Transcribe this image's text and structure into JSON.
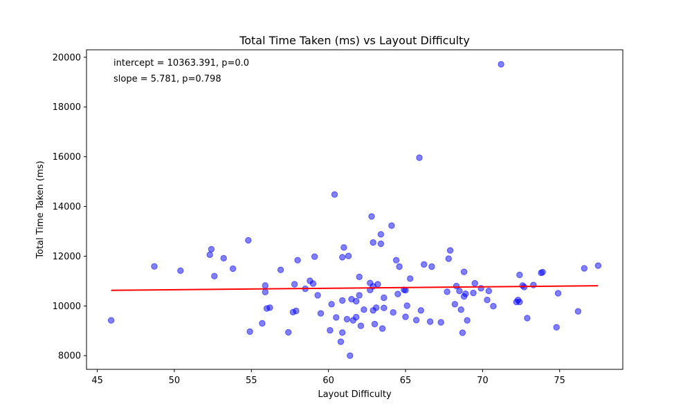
{
  "chart_data": {
    "type": "scatter",
    "title": "Total Time Taken (ms) vs Layout Difficulty",
    "xlabel": "Layout Difficulty",
    "ylabel": "Total Time Taken (ms)",
    "xlim": [
      44.3,
      79.1
    ],
    "ylim": [
      7450,
      20300
    ],
    "xticks": [
      45,
      50,
      55,
      60,
      65,
      70,
      75
    ],
    "yticks": [
      8000,
      10000,
      12000,
      14000,
      16000,
      18000,
      20000
    ],
    "grid": false,
    "legend": "none",
    "annotations": [
      "intercept = 10363.391, p=0.0",
      "slope = 5.781, p=0.798"
    ],
    "colors": {
      "points": "#0000ff",
      "fit_line": "#ff0000"
    },
    "fit_line": {
      "intercept": 10363.391,
      "slope": 5.781,
      "x_range": [
        45.9,
        77.5
      ]
    },
    "points": [
      [
        45.9,
        9420
      ],
      [
        48.7,
        11590
      ],
      [
        50.4,
        11420
      ],
      [
        52.3,
        12060
      ],
      [
        52.4,
        12280
      ],
      [
        52.6,
        11200
      ],
      [
        53.2,
        11920
      ],
      [
        53.8,
        11500
      ],
      [
        54.8,
        12640
      ],
      [
        54.9,
        8970
      ],
      [
        55.7,
        9300
      ],
      [
        55.9,
        10820
      ],
      [
        55.9,
        10560
      ],
      [
        56.0,
        9900
      ],
      [
        56.2,
        9930
      ],
      [
        56.9,
        11450
      ],
      [
        57.4,
        8940
      ],
      [
        57.7,
        9750
      ],
      [
        57.8,
        10870
      ],
      [
        57.9,
        9800
      ],
      [
        58.0,
        11840
      ],
      [
        58.5,
        10690
      ],
      [
        58.8,
        11010
      ],
      [
        59.0,
        10900
      ],
      [
        59.1,
        11980
      ],
      [
        59.3,
        10430
      ],
      [
        59.5,
        9700
      ],
      [
        60.1,
        9020
      ],
      [
        60.2,
        10070
      ],
      [
        60.4,
        14480
      ],
      [
        60.5,
        9540
      ],
      [
        60.8,
        8560
      ],
      [
        60.9,
        10220
      ],
      [
        60.9,
        8930
      ],
      [
        60.9,
        11960
      ],
      [
        61.0,
        12350
      ],
      [
        61.2,
        9470
      ],
      [
        61.3,
        12010
      ],
      [
        61.4,
        8000
      ],
      [
        61.5,
        10270
      ],
      [
        61.6,
        9420
      ],
      [
        61.8,
        10190
      ],
      [
        61.8,
        9550
      ],
      [
        62.0,
        11170
      ],
      [
        62.0,
        10430
      ],
      [
        62.1,
        9200
      ],
      [
        62.3,
        9850
      ],
      [
        62.7,
        10920
      ],
      [
        62.7,
        10640
      ],
      [
        62.8,
        13600
      ],
      [
        62.9,
        12550
      ],
      [
        62.9,
        9820
      ],
      [
        62.9,
        10790
      ],
      [
        63.0,
        9270
      ],
      [
        63.1,
        9930
      ],
      [
        63.2,
        10870
      ],
      [
        63.4,
        12500
      ],
      [
        63.4,
        12880
      ],
      [
        63.5,
        9090
      ],
      [
        63.6,
        10330
      ],
      [
        63.6,
        9920
      ],
      [
        64.1,
        13230
      ],
      [
        64.2,
        9740
      ],
      [
        64.4,
        11840
      ],
      [
        64.5,
        10480
      ],
      [
        64.6,
        11580
      ],
      [
        64.9,
        10650
      ],
      [
        65.0,
        10630
      ],
      [
        65.0,
        9560
      ],
      [
        65.1,
        10010
      ],
      [
        65.3,
        11100
      ],
      [
        65.7,
        9430
      ],
      [
        65.9,
        15960
      ],
      [
        66.0,
        9820
      ],
      [
        66.2,
        11670
      ],
      [
        66.6,
        9370
      ],
      [
        66.7,
        11580
      ],
      [
        67.3,
        9340
      ],
      [
        67.7,
        10570
      ],
      [
        67.8,
        11900
      ],
      [
        67.9,
        12230
      ],
      [
        68.2,
        10070
      ],
      [
        68.3,
        10800
      ],
      [
        68.5,
        10600
      ],
      [
        68.6,
        9850
      ],
      [
        68.7,
        8920
      ],
      [
        68.8,
        10380
      ],
      [
        68.8,
        11370
      ],
      [
        68.9,
        10490
      ],
      [
        69.0,
        9420
      ],
      [
        69.4,
        10520
      ],
      [
        69.5,
        10910
      ],
      [
        69.9,
        10710
      ],
      [
        70.3,
        10240
      ],
      [
        70.4,
        10600
      ],
      [
        70.7,
        9990
      ],
      [
        71.2,
        19720
      ],
      [
        72.2,
        10160
      ],
      [
        72.3,
        10240
      ],
      [
        72.4,
        10160
      ],
      [
        72.4,
        11250
      ],
      [
        72.6,
        10820
      ],
      [
        72.7,
        10760
      ],
      [
        72.9,
        9510
      ],
      [
        73.3,
        10840
      ],
      [
        73.8,
        11330
      ],
      [
        73.9,
        11360
      ],
      [
        74.8,
        9140
      ],
      [
        74.9,
        10510
      ],
      [
        76.2,
        9780
      ],
      [
        76.6,
        11510
      ],
      [
        77.5,
        11620
      ]
    ]
  }
}
